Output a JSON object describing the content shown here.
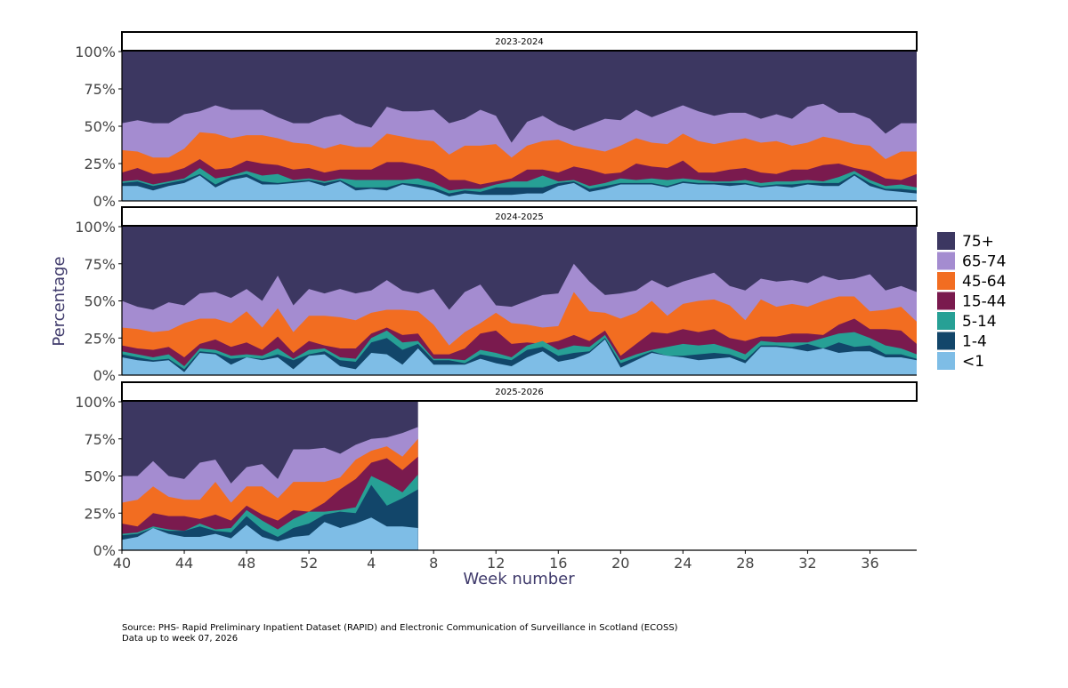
{
  "chart_data": {
    "type": "area",
    "stacked": "percent",
    "xlabel": "Week number",
    "ylabel": "Percentage",
    "y_ticks": [
      "0%",
      "25%",
      "50%",
      "75%",
      "100%"
    ],
    "x_ticks": [
      "40",
      "44",
      "48",
      "52",
      "4",
      "8",
      "12",
      "16",
      "20",
      "24",
      "28",
      "32",
      "36"
    ],
    "weeks": [
      40,
      41,
      42,
      43,
      44,
      45,
      46,
      47,
      48,
      49,
      50,
      51,
      52,
      1,
      2,
      3,
      4,
      5,
      6,
      7,
      8,
      9,
      10,
      11,
      12,
      13,
      14,
      15,
      16,
      17,
      18,
      19,
      20,
      21,
      22,
      23,
      24,
      25,
      26,
      27,
      28,
      29,
      30,
      31,
      32,
      33,
      34,
      35,
      36,
      37,
      38,
      39
    ],
    "legend_position": "right",
    "series_names": [
      "75+",
      "65-74",
      "45-64",
      "15-44",
      "5-14",
      "1-4",
      "<1"
    ],
    "colors": {
      "75+": "#3c3761",
      "65-74": "#a48cd0",
      "45-64": "#f26d21",
      "15-44": "#7a1a4e",
      "5-14": "#27a095",
      "1-4": "#12466a",
      "<1": "#7ebde6"
    },
    "panels": [
      {
        "title": "2023-2024",
        "cumulative": {
          "<1": [
            10,
            10,
            7,
            10,
            12,
            17,
            9,
            14,
            16,
            11,
            11,
            12,
            13,
            10,
            13,
            7,
            8,
            7,
            11,
            9,
            7,
            3,
            5,
            4,
            4,
            4,
            5,
            5,
            10,
            12,
            6,
            8,
            11,
            11,
            11,
            9,
            12,
            11,
            11,
            10,
            11,
            9,
            10,
            9,
            11,
            10,
            10,
            17,
            10,
            7,
            6,
            5
          ],
          "1-4": [
            12,
            13,
            10,
            12,
            14,
            18,
            11,
            16,
            18,
            13,
            12,
            13,
            14,
            12,
            14,
            9,
            9,
            9,
            12,
            11,
            9,
            5,
            7,
            6,
            9,
            9,
            9,
            9,
            12,
            13,
            8,
            10,
            12,
            12,
            12,
            10,
            13,
            12,
            12,
            12,
            12,
            10,
            11,
            11,
            12,
            12,
            12,
            18,
            12,
            8,
            8,
            7
          ],
          "5-14": [
            13,
            14,
            11,
            13,
            15,
            22,
            15,
            17,
            20,
            17,
            18,
            14,
            15,
            13,
            15,
            14,
            14,
            14,
            14,
            15,
            12,
            7,
            8,
            8,
            11,
            13,
            13,
            17,
            13,
            14,
            10,
            12,
            15,
            14,
            15,
            14,
            15,
            14,
            13,
            13,
            14,
            12,
            13,
            13,
            14,
            13,
            16,
            20,
            14,
            10,
            11,
            9
          ],
          "15-44": [
            19,
            22,
            18,
            19,
            22,
            28,
            21,
            22,
            27,
            25,
            24,
            21,
            22,
            19,
            21,
            21,
            21,
            26,
            26,
            24,
            21,
            14,
            14,
            11,
            13,
            15,
            21,
            21,
            19,
            23,
            21,
            18,
            19,
            25,
            23,
            22,
            27,
            19,
            19,
            21,
            22,
            19,
            18,
            21,
            21,
            24,
            25,
            22,
            20,
            15,
            14,
            18
          ],
          "45-64": [
            34,
            33,
            29,
            29,
            35,
            46,
            45,
            42,
            44,
            44,
            42,
            39,
            38,
            35,
            38,
            36,
            36,
            45,
            43,
            41,
            40,
            31,
            37,
            37,
            38,
            29,
            37,
            40,
            41,
            37,
            35,
            33,
            37,
            42,
            39,
            38,
            45,
            40,
            38,
            40,
            42,
            39,
            40,
            37,
            39,
            43,
            41,
            38,
            37,
            28,
            33,
            33
          ],
          "65-74": [
            52,
            54,
            52,
            52,
            58,
            60,
            64,
            61,
            61,
            61,
            56,
            52,
            52,
            56,
            58,
            52,
            49,
            63,
            60,
            60,
            61,
            52,
            55,
            61,
            57,
            39,
            53,
            57,
            51,
            47,
            51,
            55,
            54,
            61,
            56,
            60,
            64,
            60,
            57,
            59,
            59,
            55,
            58,
            55,
            63,
            65,
            59,
            59,
            55,
            45,
            52,
            52
          ]
        }
      },
      {
        "title": "2024-2025",
        "cumulative": {
          "<1": [
            12,
            10,
            9,
            10,
            2,
            15,
            14,
            7,
            12,
            10,
            12,
            4,
            13,
            14,
            6,
            4,
            15,
            14,
            7,
            18,
            7,
            7,
            7,
            11,
            8,
            6,
            12,
            16,
            9,
            11,
            15,
            24,
            5,
            10,
            15,
            13,
            12,
            10,
            11,
            12,
            8,
            19,
            19,
            18,
            16,
            18,
            15,
            16,
            16,
            12,
            12,
            10
          ],
          "1-4": [
            14,
            12,
            10,
            11,
            4,
            16,
            15,
            11,
            12,
            11,
            14,
            10,
            14,
            16,
            10,
            9,
            22,
            25,
            17,
            21,
            10,
            10,
            8,
            14,
            12,
            10,
            17,
            19,
            13,
            15,
            16,
            25,
            8,
            12,
            16,
            13,
            13,
            14,
            15,
            14,
            10,
            20,
            20,
            19,
            21,
            18,
            22,
            19,
            20,
            14,
            14,
            11
          ],
          "5-14": [
            16,
            14,
            12,
            14,
            6,
            18,
            17,
            13,
            14,
            13,
            18,
            11,
            17,
            18,
            12,
            11,
            25,
            30,
            22,
            23,
            11,
            11,
            10,
            17,
            15,
            12,
            20,
            23,
            17,
            20,
            19,
            27,
            10,
            14,
            17,
            19,
            21,
            20,
            21,
            18,
            14,
            23,
            22,
            22,
            22,
            25,
            28,
            29,
            25,
            20,
            18,
            14
          ],
          "15-44": [
            20,
            18,
            17,
            19,
            12,
            21,
            24,
            19,
            22,
            17,
            26,
            15,
            23,
            20,
            18,
            18,
            28,
            32,
            27,
            28,
            14,
            14,
            18,
            28,
            30,
            21,
            22,
            21,
            23,
            27,
            23,
            30,
            13,
            21,
            29,
            28,
            31,
            29,
            31,
            25,
            23,
            26,
            26,
            28,
            28,
            27,
            34,
            38,
            31,
            31,
            30,
            21
          ],
          "45-64": [
            32,
            31,
            29,
            30,
            35,
            38,
            38,
            35,
            43,
            32,
            45,
            29,
            40,
            40,
            39,
            37,
            42,
            44,
            44,
            43,
            34,
            20,
            29,
            35,
            42,
            35,
            34,
            32,
            33,
            56,
            43,
            42,
            38,
            42,
            50,
            40,
            48,
            50,
            51,
            47,
            37,
            51,
            46,
            48,
            46,
            50,
            53,
            53,
            43,
            44,
            46,
            36
          ],
          "65-74": [
            50,
            46,
            44,
            49,
            47,
            55,
            56,
            52,
            58,
            50,
            67,
            47,
            58,
            55,
            58,
            55,
            57,
            64,
            57,
            55,
            58,
            44,
            56,
            61,
            47,
            46,
            50,
            54,
            55,
            75,
            63,
            54,
            55,
            57,
            64,
            59,
            63,
            66,
            69,
            60,
            57,
            65,
            63,
            64,
            62,
            67,
            64,
            65,
            68,
            57,
            60,
            56
          ]
        }
      },
      {
        "title": "2025-2026",
        "cumulative": {
          "<1": [
            7,
            9,
            15,
            11,
            9,
            9,
            11,
            8,
            17,
            9,
            6,
            9,
            10,
            19,
            15,
            18,
            22,
            16,
            16,
            15
          ],
          "1-4": [
            10,
            11,
            15,
            13,
            13,
            16,
            13,
            12,
            23,
            14,
            9,
            15,
            18,
            24,
            26,
            25,
            44,
            30,
            35,
            41
          ],
          "5-14": [
            11,
            12,
            16,
            14,
            13,
            18,
            14,
            15,
            27,
            20,
            14,
            21,
            26,
            26,
            27,
            29,
            50,
            45,
            39,
            51
          ],
          "15-44": [
            18,
            16,
            25,
            23,
            23,
            21,
            24,
            20,
            30,
            24,
            20,
            27,
            26,
            32,
            41,
            48,
            59,
            62,
            54,
            63
          ],
          "45-64": [
            32,
            34,
            43,
            36,
            34,
            34,
            46,
            32,
            43,
            43,
            35,
            46,
            46,
            46,
            49,
            61,
            67,
            70,
            63,
            75
          ],
          "65-74": [
            50,
            50,
            60,
            50,
            48,
            59,
            61,
            45,
            56,
            58,
            48,
            68,
            68,
            69,
            65,
            71,
            75,
            76,
            79,
            83
          ]
        }
      }
    ]
  },
  "source_text": "Source: PHS- Rapid Preliminary Inpatient Dataset (RAPID) and Electronic Communication of Surveillance in Scotland (ECOSS)\nData up to week 07, 2026"
}
